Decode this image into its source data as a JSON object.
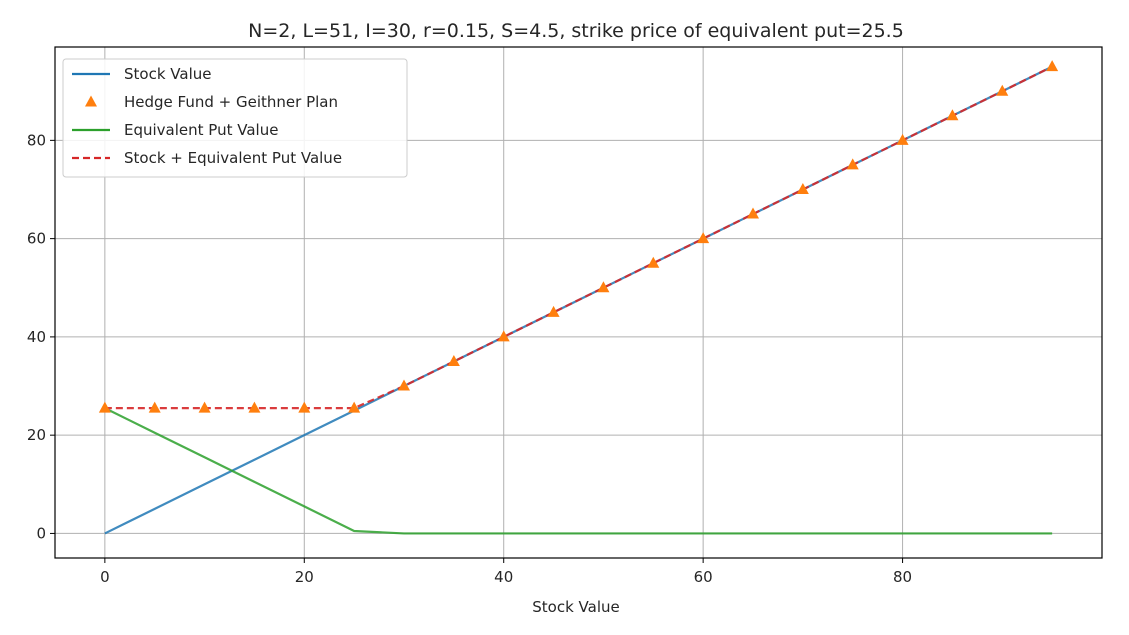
{
  "chart_data": {
    "type": "line",
    "title": "N=2, L=51, I=30, r=0.15, S=4.5, strike price of equivalent put=25.5",
    "xlabel": "Stock Value",
    "ylabel": "",
    "xlim": [
      -5,
      100
    ],
    "ylim": [
      -5,
      99
    ],
    "xticks": [
      0,
      20,
      40,
      60,
      80
    ],
    "yticks": [
      0,
      20,
      40,
      60,
      80
    ],
    "grid": true,
    "legend_position": "upper-left",
    "x": [
      0,
      5,
      10,
      15,
      20,
      25,
      30,
      35,
      40,
      45,
      50,
      55,
      60,
      65,
      70,
      75,
      80,
      85,
      90,
      95
    ],
    "series": [
      {
        "name": "Stock Value",
        "style": "solid-line",
        "color": "#1f77b4",
        "values": [
          0,
          5,
          10,
          15,
          20,
          25,
          30,
          35,
          40,
          45,
          50,
          55,
          60,
          65,
          70,
          75,
          80,
          85,
          90,
          95
        ]
      },
      {
        "name": "Hedge Fund + Geithner Plan",
        "style": "triangle-markers",
        "color": "#ff7f0e",
        "values": [
          25.5,
          25.5,
          25.5,
          25.5,
          25.5,
          25.5,
          30,
          35,
          40,
          45,
          50,
          55,
          60,
          65,
          70,
          75,
          80,
          85,
          90,
          95
        ]
      },
      {
        "name": "Equivalent Put Value",
        "style": "solid-line",
        "color": "#2ca02c",
        "values": [
          25.5,
          20.5,
          15.5,
          10.5,
          5.5,
          0.5,
          0,
          0,
          0,
          0,
          0,
          0,
          0,
          0,
          0,
          0,
          0,
          0,
          0,
          0
        ]
      },
      {
        "name": "Stock + Equivalent Put Value",
        "style": "dashed-line",
        "color": "#d62728",
        "values": [
          25.5,
          25.5,
          25.5,
          25.5,
          25.5,
          25.5,
          30,
          35,
          40,
          45,
          50,
          55,
          60,
          65,
          70,
          75,
          80,
          85,
          90,
          95
        ]
      }
    ]
  }
}
